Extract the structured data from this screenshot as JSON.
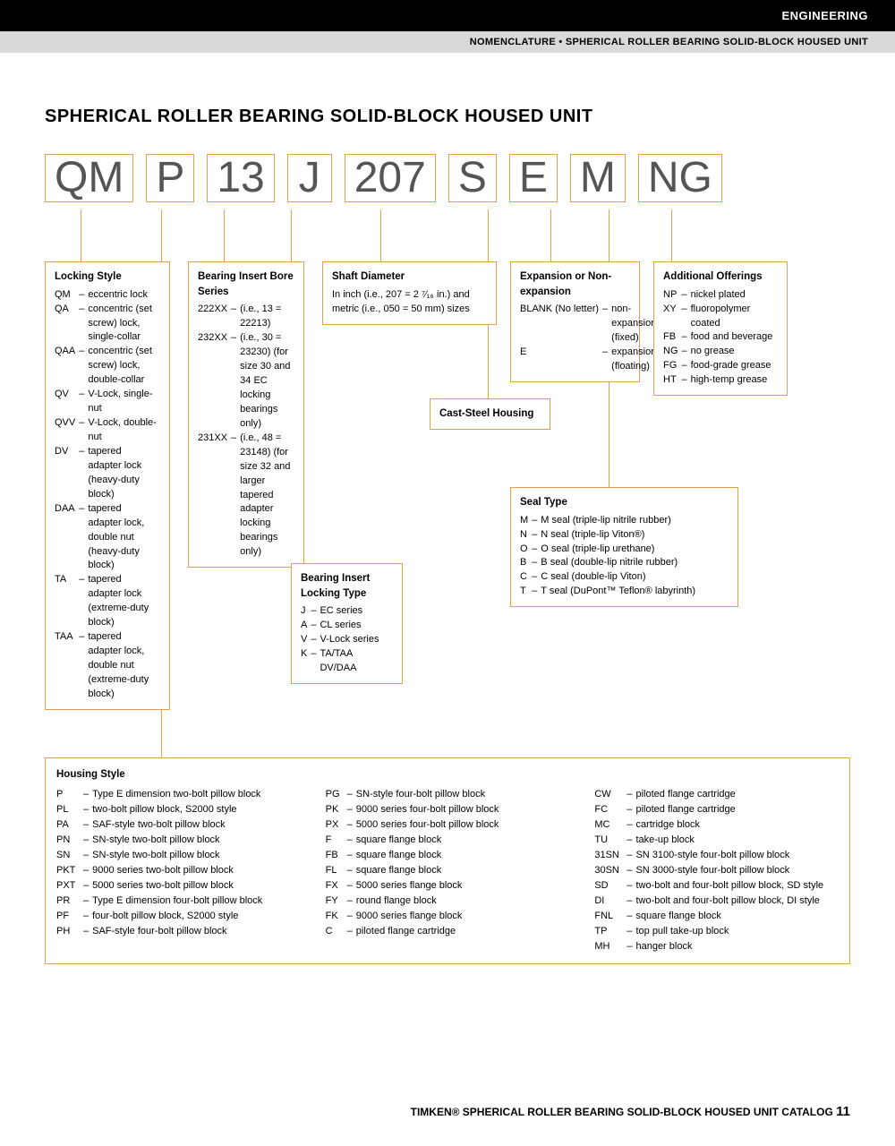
{
  "header": {
    "engineering": "ENGINEERING",
    "breadcrumb": "NOMENCLATURE • SPHERICAL ROLLER BEARING SOLID-BLOCK HOUSED UNIT"
  },
  "title": "SPHERICAL ROLLER BEARING SOLID-BLOCK HOUSED UNIT",
  "codes": [
    "QM",
    "P",
    "13",
    "J",
    "207",
    "S",
    "E",
    "M",
    "NG"
  ],
  "locking_style": {
    "title": "Locking Style",
    "items": [
      [
        "QM",
        "eccentric lock"
      ],
      [
        "QA",
        "concentric (set screw) lock, single-collar"
      ],
      [
        "QAA",
        "concentric (set screw) lock, double-collar"
      ],
      [
        "QV",
        "V-Lock, single-nut"
      ],
      [
        "QVV",
        "V-Lock, double-nut"
      ],
      [
        "DV",
        "tapered adapter lock (heavy-duty block)"
      ],
      [
        "DAA",
        "tapered adapter lock, double nut (heavy-duty block)"
      ],
      [
        "TA",
        "tapered adapter lock (extreme-duty block)"
      ],
      [
        "TAA",
        "tapered adapter lock, double nut (extreme-duty block)"
      ]
    ]
  },
  "bore_series": {
    "title": "Bearing Insert Bore Series",
    "items": [
      [
        "222XX",
        "(i.e., 13 = 22213)"
      ],
      [
        "232XX",
        "(i.e., 30 = 23230) (for size 30 and 34 EC locking bearings only)"
      ],
      [
        "231XX",
        "(i.e., 48 = 23148) (for size 32 and larger tapered adapter locking bearings only)"
      ]
    ]
  },
  "locking_type": {
    "title": "Bearing Insert Locking Type",
    "items": [
      [
        "J",
        "EC series"
      ],
      [
        "A",
        "CL series"
      ],
      [
        "V",
        "V-Lock series"
      ],
      [
        "K",
        "TA/TAA DV/DAA"
      ]
    ]
  },
  "shaft_diameter": {
    "title": "Shaft Diameter",
    "text": "In inch (i.e., 207 = 2 ⁷⁄₁₆ in.) and metric (i.e., 050 = 50 mm) sizes"
  },
  "cast_steel": {
    "title": "Cast-Steel Housing"
  },
  "expansion": {
    "title": "Expansion or Non-expansion",
    "items": [
      [
        "BLANK (No letter)",
        "non-expansion (fixed)"
      ],
      [
        "E",
        "expansion (floating)"
      ]
    ]
  },
  "seal_type": {
    "title": "Seal Type",
    "items": [
      [
        "M",
        "M seal (triple-lip nitrile rubber)"
      ],
      [
        "N",
        "N seal (triple-lip Viton®)"
      ],
      [
        "O",
        "O seal (triple-lip urethane)"
      ],
      [
        "B",
        "B seal (double-lip nitrile rubber)"
      ],
      [
        "C",
        "C seal (double-lip Viton)"
      ],
      [
        "T",
        "T seal (DuPont™ Teflon® labyrinth)"
      ]
    ]
  },
  "additional": {
    "title": "Additional Offerings",
    "items": [
      [
        "NP",
        "nickel plated"
      ],
      [
        "XY",
        "fluoropolymer coated"
      ],
      [
        "FB",
        "food and beverage"
      ],
      [
        "NG",
        "no grease"
      ],
      [
        "FG",
        "food-grade grease"
      ],
      [
        "HT",
        "high-temp grease"
      ]
    ]
  },
  "housing": {
    "title": "Housing Style",
    "col1": [
      [
        "P",
        "Type E dimension two-bolt pillow block"
      ],
      [
        "PL",
        "two-bolt pillow block, S2000 style"
      ],
      [
        "PA",
        "SAF-style two-bolt pillow block"
      ],
      [
        "PN",
        "SN-style two-bolt pillow block"
      ],
      [
        "SN",
        "SN-style two-bolt pillow block"
      ],
      [
        "PKT",
        "9000 series two-bolt pillow block"
      ],
      [
        "PXT",
        "5000 series two-bolt pillow block"
      ],
      [
        "PR",
        "Type E dimension four-bolt pillow block"
      ],
      [
        "PF",
        "four-bolt pillow block, S2000 style"
      ],
      [
        "PH",
        "SAF-style four-bolt pillow block"
      ]
    ],
    "col2": [
      [
        "PG",
        "SN-style four-bolt pillow block"
      ],
      [
        "PK",
        "9000 series four-bolt pillow block"
      ],
      [
        "PX",
        "5000 series four-bolt pillow block"
      ],
      [
        "F",
        "square flange block"
      ],
      [
        "FB",
        "square flange block"
      ],
      [
        "FL",
        "square flange block"
      ],
      [
        "FX",
        "5000 series flange block"
      ],
      [
        "FY",
        "round flange block"
      ],
      [
        "FK",
        "9000 series flange block"
      ],
      [
        "C",
        "piloted flange cartridge"
      ]
    ],
    "col3": [
      [
        "CW",
        "piloted flange cartridge"
      ],
      [
        "FC",
        "piloted flange cartridge"
      ],
      [
        "MC",
        "cartridge block"
      ],
      [
        "TU",
        "take-up block"
      ],
      [
        "31SN",
        "SN 3100-style four-bolt pillow block"
      ],
      [
        "30SN",
        "SN 3000-style four-bolt pillow block"
      ],
      [
        "SD",
        "two-bolt and four-bolt pillow block, SD style"
      ],
      [
        "DI",
        "two-bolt and four-bolt pillow block, DI style"
      ],
      [
        "FNL",
        "square flange block"
      ],
      [
        "TP",
        "top pull take-up block"
      ],
      [
        "MH",
        "hanger block"
      ]
    ]
  },
  "footer": {
    "text": "TIMKEN® SPHERICAL ROLLER BEARING SOLID-BLOCK HOUSED UNIT CATALOG",
    "page": "11"
  },
  "colors": {
    "accent": "#e0a050",
    "black": "#000000",
    "gray_bar": "#d9d9d9",
    "code_text": "#555555"
  }
}
